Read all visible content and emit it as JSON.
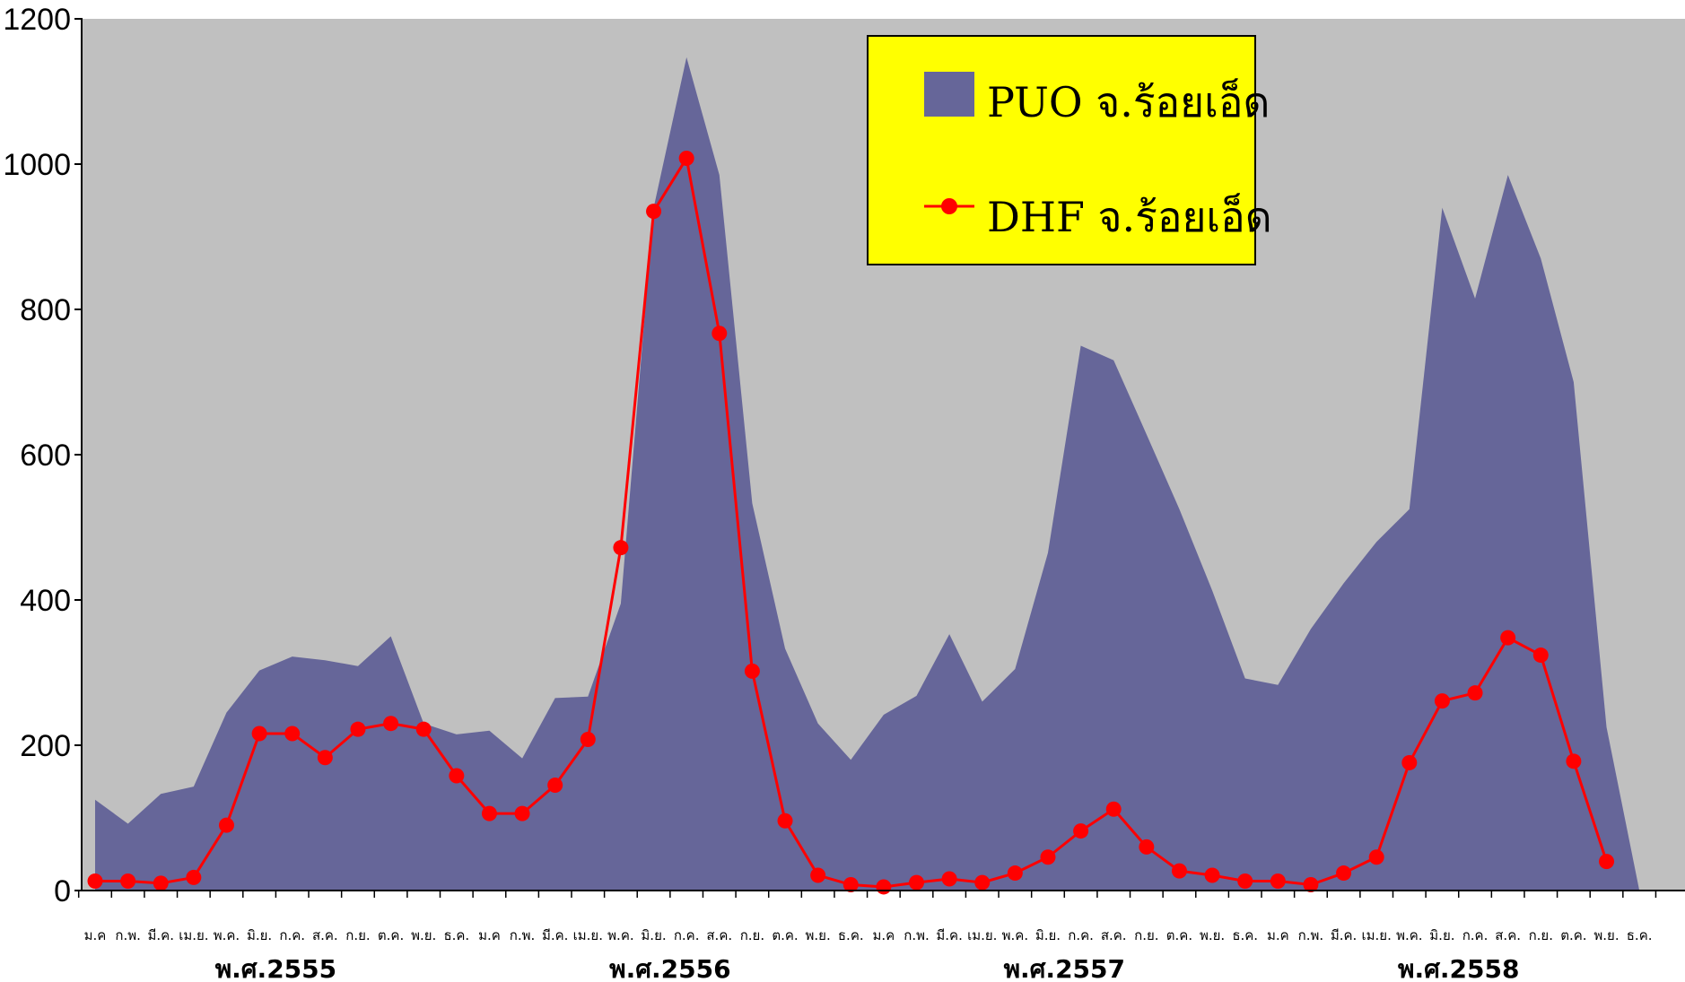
{
  "chart_data": {
    "type": "area",
    "title": "",
    "xlabel": "",
    "ylabel": "",
    "ylim": [
      0,
      1200
    ],
    "yticks": [
      0,
      200,
      400,
      600,
      800,
      1000,
      1200
    ],
    "grid": false,
    "legend_position": "top-center",
    "colors": {
      "plot_bg": "#C0C0C0",
      "area": "#666699",
      "line": "#FF0000",
      "legend_bg": "#FFFF00"
    },
    "categories": [
      "ม.ค",
      "ก.พ.",
      "มี.ค.",
      "เม.ย.",
      "พ.ค.",
      "มิ.ย.",
      "ก.ค.",
      "ส.ค.",
      "ก.ย.",
      "ต.ค.",
      "พ.ย.",
      "ธ.ค.",
      "ม.ค",
      "ก.พ.",
      "มี.ค.",
      "เม.ย.",
      "พ.ค.",
      "มิ.ย.",
      "ก.ค.",
      "ส.ค.",
      "ก.ย.",
      "ต.ค.",
      "พ.ย.",
      "ธ.ค.",
      "ม.ค",
      "ก.พ.",
      "มี.ค.",
      "เม.ย.",
      "พ.ค.",
      "มิ.ย.",
      "ก.ค.",
      "ส.ค.",
      "ก.ย.",
      "ต.ค.",
      "พ.ย.",
      "ธ.ค.",
      "ม.ค",
      "ก.พ.",
      "มี.ค.",
      "เม.ย.",
      "พ.ค.",
      "มิ.ย.",
      "ก.ค.",
      "ส.ค.",
      "ก.ย.",
      "ต.ค.",
      "พ.ย.",
      "ธ.ค."
    ],
    "groups": [
      {
        "label": "พ.ศ.2555",
        "start": 0,
        "end": 11
      },
      {
        "label": "พ.ศ.2556",
        "start": 12,
        "end": 23
      },
      {
        "label": "พ.ศ.2557",
        "start": 24,
        "end": 35
      },
      {
        "label": "พ.ศ.2558",
        "start": 36,
        "end": 47
      }
    ],
    "series": [
      {
        "name": "PUO จ.ร้อยเอ็ด",
        "type": "area",
        "values": [
          125,
          92,
          133,
          143,
          245,
          303,
          322,
          317,
          309,
          350,
          230,
          215,
          220,
          182,
          265,
          267,
          395,
          940,
          1147,
          985,
          533,
          333,
          230,
          180,
          242,
          268,
          353,
          260,
          305,
          465,
          750,
          730,
          628,
          525,
          413,
          292,
          283,
          360,
          423,
          480,
          525,
          940,
          815,
          985,
          870,
          700,
          225,
          0
        ]
      },
      {
        "name": "DHF จ.ร้อยเอ็ด",
        "type": "line",
        "values": [
          13,
          13,
          10,
          18,
          90,
          216,
          216,
          183,
          222,
          230,
          222,
          158,
          106,
          106,
          145,
          208,
          472,
          935,
          1008,
          767,
          302,
          96,
          21,
          8,
          5,
          11,
          16,
          11,
          24,
          46,
          82,
          112,
          60,
          27,
          21,
          13,
          13,
          8,
          24,
          46,
          176,
          261,
          272,
          348,
          324,
          178,
          40,
          null
        ]
      }
    ]
  }
}
